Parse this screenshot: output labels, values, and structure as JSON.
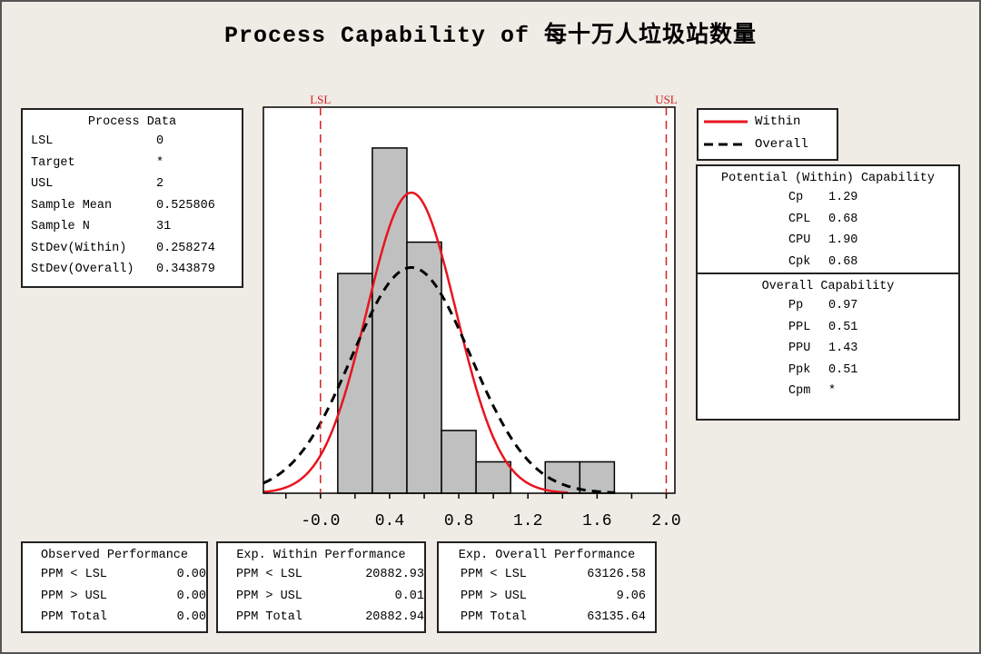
{
  "title": "Process Capability of 每十万人垃圾站数量",
  "process_data": {
    "heading": "Process Data",
    "rows": [
      {
        "label": "LSL",
        "value": "0"
      },
      {
        "label": "Target",
        "value": "*"
      },
      {
        "label": "USL",
        "value": "2"
      },
      {
        "label": "Sample Mean",
        "value": "0.525806"
      },
      {
        "label": "Sample N",
        "value": "31"
      },
      {
        "label": "StDev(Within)",
        "value": "0.258274"
      },
      {
        "label": "StDev(Overall)",
        "value": "0.343879"
      }
    ]
  },
  "legend": {
    "within": "Within",
    "overall": "Overall"
  },
  "potential_capability": {
    "heading": "Potential (Within) Capability",
    "rows": [
      {
        "label": "Cp",
        "value": "1.29"
      },
      {
        "label": "CPL",
        "value": "0.68"
      },
      {
        "label": "CPU",
        "value": "1.90"
      },
      {
        "label": "Cpk",
        "value": "0.68"
      }
    ]
  },
  "overall_capability": {
    "heading": "Overall Capability",
    "rows": [
      {
        "label": "Pp",
        "value": "0.97"
      },
      {
        "label": "PPL",
        "value": "0.51"
      },
      {
        "label": "PPU",
        "value": "1.43"
      },
      {
        "label": "Ppk",
        "value": "0.51"
      },
      {
        "label": "Cpm",
        "value": "*"
      }
    ]
  },
  "observed_performance": {
    "heading": "Observed Performance",
    "rows": [
      {
        "label": "PPM < LSL",
        "value": "0.00"
      },
      {
        "label": "PPM > USL",
        "value": "0.00"
      },
      {
        "label": "PPM Total",
        "value": "0.00"
      }
    ]
  },
  "exp_within_performance": {
    "heading": "Exp. Within Performance",
    "rows": [
      {
        "label": "PPM < LSL",
        "value": "20882.93"
      },
      {
        "label": "PPM > USL",
        "value": "0.01"
      },
      {
        "label": "PPM Total",
        "value": "20882.94"
      }
    ]
  },
  "exp_overall_performance": {
    "heading": "Exp. Overall Performance",
    "rows": [
      {
        "label": "PPM < LSL",
        "value": "63126.58"
      },
      {
        "label": "PPM > USL",
        "value": "9.06"
      },
      {
        "label": "PPM Total",
        "value": "63135.64"
      }
    ]
  },
  "chart_data": {
    "type": "bar",
    "subtype": "histogram with normal curves",
    "bin_edges": [
      0.1,
      0.3,
      0.5,
      0.7,
      0.9,
      1.1,
      1.3,
      1.5,
      1.7
    ],
    "counts": [
      7,
      11,
      8,
      2,
      1,
      0,
      1,
      1
    ],
    "xlim": [
      -0.33,
      2.05
    ],
    "ylim": [
      0,
      12.3
    ],
    "x_ticks": [
      -0.2,
      0.0,
      0.2,
      0.4,
      0.6,
      0.8,
      1.0,
      1.2,
      1.4,
      1.6,
      1.8,
      2.0
    ],
    "x_tick_labels": [
      "-0.0",
      "0.4",
      "0.8",
      "1.2",
      "1.6",
      "2.0"
    ],
    "x_tick_label_values": [
      0.0,
      0.4,
      0.8,
      1.2,
      1.6,
      2.0
    ],
    "spec_limits": [
      {
        "label": "LSL",
        "value": 0
      },
      {
        "label": "USL",
        "value": 2
      }
    ],
    "curves": [
      {
        "name": "Within",
        "mean": 0.525806,
        "stdev": 0.258274,
        "color": "#e8141e",
        "style": "solid"
      },
      {
        "name": "Overall",
        "mean": 0.525806,
        "stdev": 0.343879,
        "color": "#000000",
        "style": "dashed"
      }
    ],
    "sample_n": 31,
    "bar_color": "#c0c0c0",
    "spec_color": "#d42020",
    "grid": false
  }
}
